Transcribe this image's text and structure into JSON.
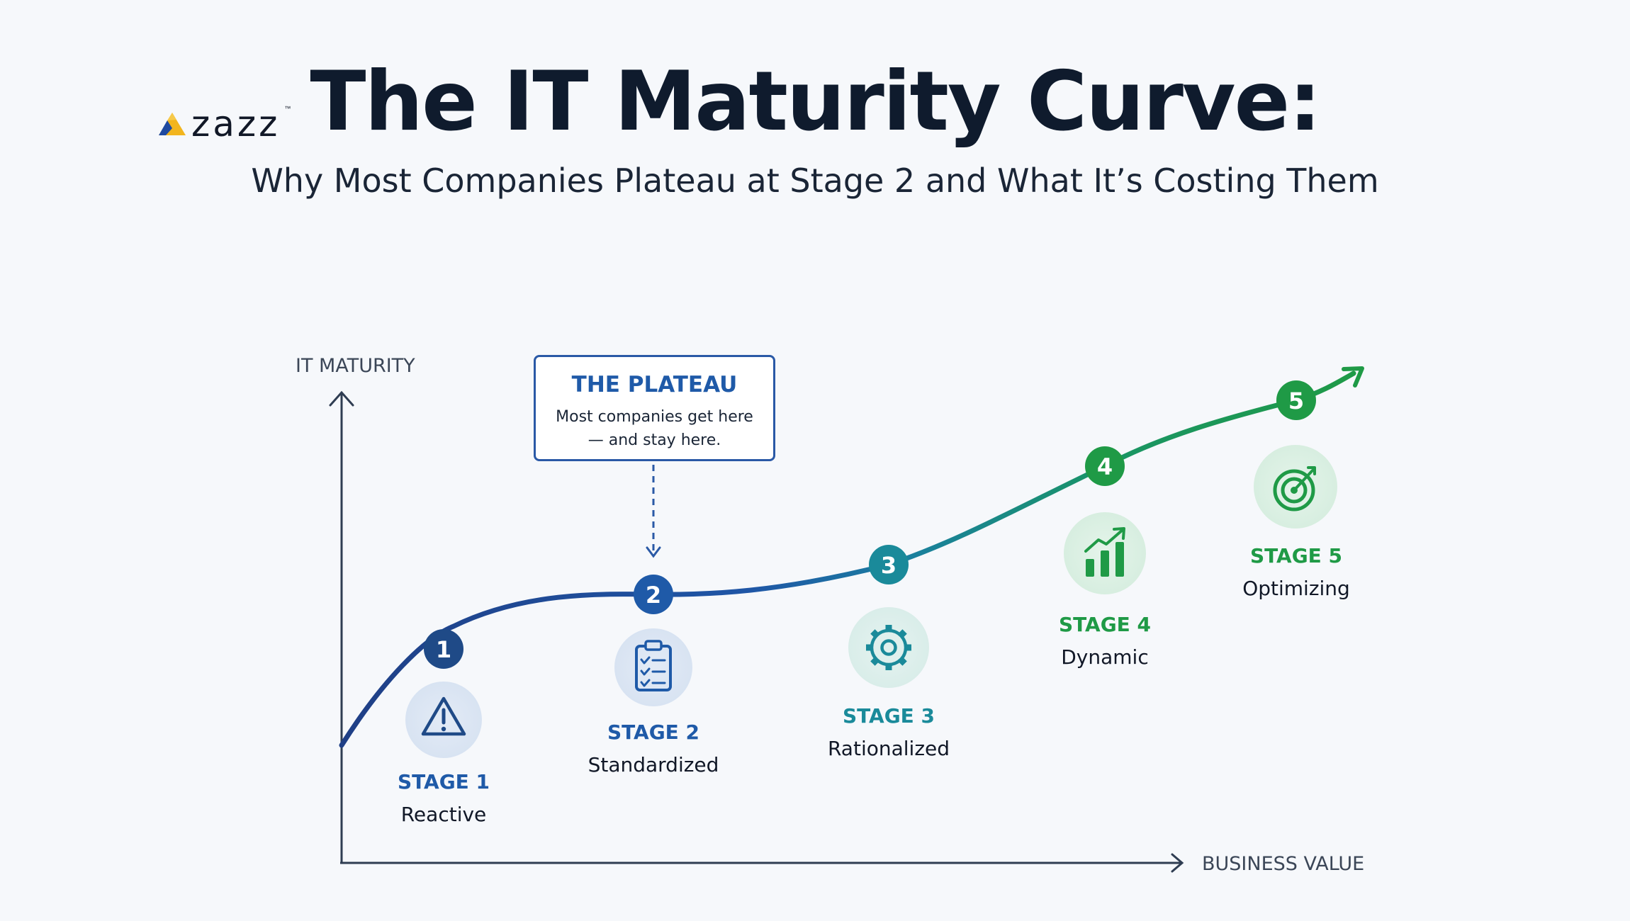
{
  "logo": {
    "text": "zazz",
    "tm": "™"
  },
  "header": {
    "title": "The IT Maturity Curve:",
    "subtitle": "Why Most Companies Plateau at Stage 2 and What It’s Costing Them"
  },
  "axes": {
    "y_label": "IT MATURITY",
    "x_label": "BUSINESS VALUE"
  },
  "callout": {
    "title": "THE PLATEAU",
    "text": "Most companies get here— and stay here."
  },
  "stages": [
    {
      "number": "1",
      "title": "STAGE 1",
      "name": "Reactive",
      "icon": "warning-icon",
      "color": "#1f4a87"
    },
    {
      "number": "2",
      "title": "STAGE 2",
      "name": "Standardized",
      "icon": "clipboard-checklist-icon",
      "color": "#1f5aa8"
    },
    {
      "number": "3",
      "title": "STAGE 3",
      "name": "Rationalized",
      "icon": "gear-icon",
      "color": "#1a8a9a"
    },
    {
      "number": "4",
      "title": "STAGE 4",
      "name": "Dynamic",
      "icon": "bar-chart-growth-icon",
      "color": "#1f9a46"
    },
    {
      "number": "5",
      "title": "STAGE 5",
      "name": "Optimizing",
      "icon": "target-arrow-icon",
      "color": "#1f9a46"
    }
  ],
  "colors": {
    "curve_start": "#1f3f86",
    "curve_end": "#1f9a46",
    "axis": "#2f3d52",
    "callout_border": "#2a59a6"
  }
}
